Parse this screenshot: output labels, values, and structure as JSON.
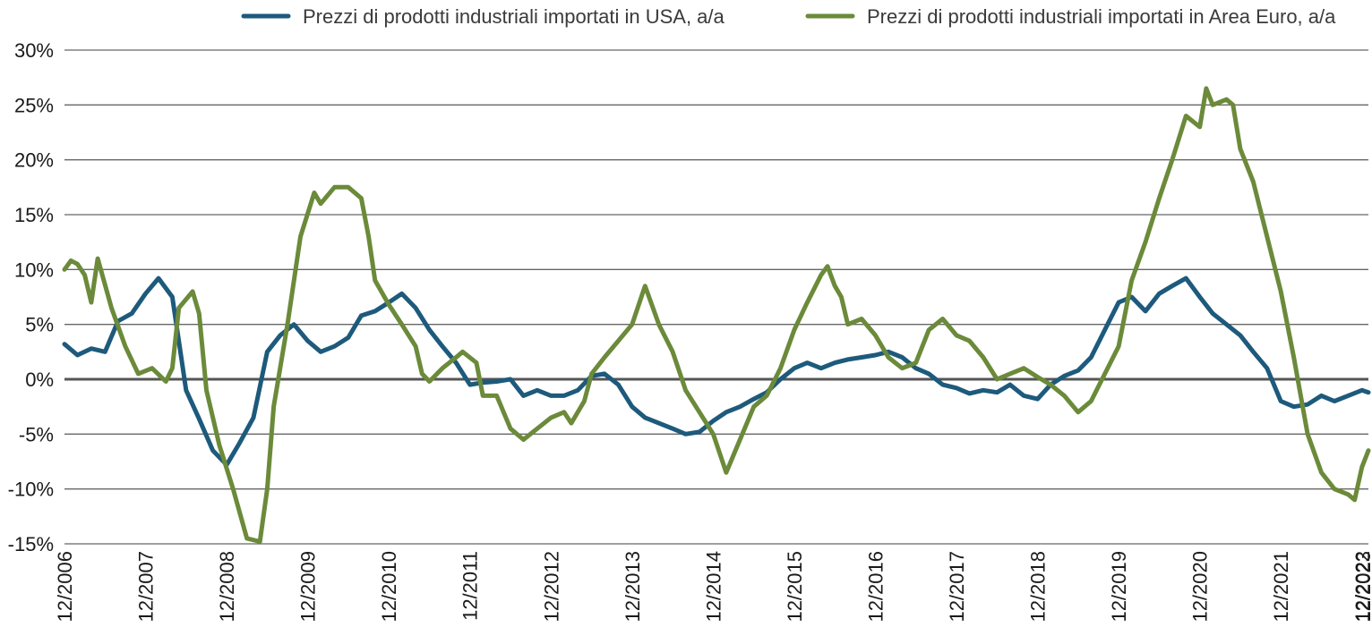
{
  "chart_data": {
    "type": "line",
    "title": "",
    "xlabel": "",
    "ylabel": "",
    "x_tick_labels": [
      "12/2006",
      "12/2007",
      "12/2008",
      "12/2009",
      "12/2010",
      "12/2011",
      "12/2012",
      "12/2013",
      "12/2014",
      "12/2015",
      "12/2016",
      "12/2017",
      "12/2018",
      "12/2019",
      "12/2020",
      "12/2021",
      "12/2022",
      "12/2023"
    ],
    "y_ticks": [
      30,
      25,
      20,
      15,
      10,
      5,
      0,
      -5,
      -10,
      -15
    ],
    "y_tick_labels": [
      "30%",
      "25%",
      "20%",
      "15%",
      "10%",
      "5%",
      "0%",
      "-5%",
      "-10%",
      "-15%"
    ],
    "ylim": [
      -15,
      30
    ],
    "xlim": [
      "12/2006",
      "12/2023"
    ],
    "grid": "horizontal",
    "legend_position": "top",
    "x_unit": "year",
    "series": [
      {
        "name": "Prezzi di prodotti industriali importati in USA, a/a",
        "color": "#1d5a7c",
        "points": [
          [
            2006.92,
            3.2
          ],
          [
            2007.08,
            2.2
          ],
          [
            2007.25,
            2.8
          ],
          [
            2007.42,
            2.5
          ],
          [
            2007.58,
            5.3
          ],
          [
            2007.75,
            6.0
          ],
          [
            2007.92,
            7.8
          ],
          [
            2008.08,
            9.2
          ],
          [
            2008.25,
            7.5
          ],
          [
            2008.42,
            -1.0
          ],
          [
            2008.58,
            -3.6
          ],
          [
            2008.75,
            -6.5
          ],
          [
            2008.92,
            -7.8
          ],
          [
            2009.08,
            -5.8
          ],
          [
            2009.25,
            -3.5
          ],
          [
            2009.42,
            2.5
          ],
          [
            2009.58,
            4.0
          ],
          [
            2009.75,
            5.0
          ],
          [
            2009.92,
            3.5
          ],
          [
            2010.08,
            2.5
          ],
          [
            2010.25,
            3.0
          ],
          [
            2010.42,
            3.8
          ],
          [
            2010.58,
            5.8
          ],
          [
            2010.75,
            6.2
          ],
          [
            2010.92,
            7.0
          ],
          [
            2011.08,
            7.8
          ],
          [
            2011.25,
            6.5
          ],
          [
            2011.42,
            4.5
          ],
          [
            2011.58,
            3.0
          ],
          [
            2011.75,
            1.5
          ],
          [
            2011.92,
            -0.5
          ],
          [
            2012.08,
            -0.3
          ],
          [
            2012.25,
            -0.2
          ],
          [
            2012.42,
            0.0
          ],
          [
            2012.58,
            -1.5
          ],
          [
            2012.75,
            -1.0
          ],
          [
            2012.92,
            -1.5
          ],
          [
            2013.08,
            -1.5
          ],
          [
            2013.25,
            -1.0
          ],
          [
            2013.42,
            0.3
          ],
          [
            2013.58,
            0.5
          ],
          [
            2013.75,
            -0.5
          ],
          [
            2013.92,
            -2.5
          ],
          [
            2014.08,
            -3.5
          ],
          [
            2014.25,
            -4.0
          ],
          [
            2014.42,
            -4.5
          ],
          [
            2014.58,
            -5.0
          ],
          [
            2014.75,
            -4.8
          ],
          [
            2014.92,
            -3.8
          ],
          [
            2015.08,
            -3.0
          ],
          [
            2015.25,
            -2.5
          ],
          [
            2015.42,
            -1.8
          ],
          [
            2015.58,
            -1.2
          ],
          [
            2015.75,
            0.0
          ],
          [
            2015.92,
            1.0
          ],
          [
            2016.08,
            1.5
          ],
          [
            2016.25,
            1.0
          ],
          [
            2016.42,
            1.5
          ],
          [
            2016.58,
            1.8
          ],
          [
            2016.75,
            2.0
          ],
          [
            2016.92,
            2.2
          ],
          [
            2017.08,
            2.5
          ],
          [
            2017.25,
            2.0
          ],
          [
            2017.42,
            1.0
          ],
          [
            2017.58,
            0.5
          ],
          [
            2017.75,
            -0.5
          ],
          [
            2017.92,
            -0.8
          ],
          [
            2018.08,
            -1.3
          ],
          [
            2018.25,
            -1.0
          ],
          [
            2018.42,
            -1.2
          ],
          [
            2018.58,
            -0.5
          ],
          [
            2018.75,
            -1.5
          ],
          [
            2018.92,
            -1.8
          ],
          [
            2019.08,
            -0.5
          ],
          [
            2019.25,
            0.3
          ],
          [
            2019.42,
            0.8
          ],
          [
            2019.58,
            2.0
          ],
          [
            2019.75,
            4.5
          ],
          [
            2019.92,
            7.0
          ],
          [
            2020.08,
            7.5
          ],
          [
            2020.25,
            6.2
          ],
          [
            2020.42,
            7.8
          ],
          [
            2020.58,
            8.5
          ],
          [
            2020.75,
            9.2
          ],
          [
            2020.92,
            7.5
          ],
          [
            2021.08,
            6.0
          ],
          [
            2021.25,
            5.0
          ],
          [
            2021.42,
            4.0
          ],
          [
            2021.58,
            2.5
          ],
          [
            2021.75,
            1.0
          ],
          [
            2021.92,
            -2.0
          ],
          [
            2022.08,
            -2.5
          ],
          [
            2022.25,
            -2.3
          ],
          [
            2022.42,
            -1.5
          ],
          [
            2022.58,
            -2.0
          ],
          [
            2022.75,
            -1.5
          ],
          [
            2022.92,
            -1.0
          ],
          [
            2023.0,
            -1.2
          ]
        ]
      },
      {
        "name": "Prezzi di prodotti industriali importati in Area Euro, a/a",
        "color": "#6b8a3a",
        "points": [
          [
            2006.92,
            10.0
          ],
          [
            2007.0,
            10.8
          ],
          [
            2007.08,
            10.5
          ],
          [
            2007.17,
            9.5
          ],
          [
            2007.25,
            7.0
          ],
          [
            2007.33,
            11.0
          ],
          [
            2007.5,
            6.5
          ],
          [
            2007.67,
            3.0
          ],
          [
            2007.83,
            0.5
          ],
          [
            2008.0,
            1.0
          ],
          [
            2008.17,
            -0.2
          ],
          [
            2008.25,
            1.0
          ],
          [
            2008.33,
            6.5
          ],
          [
            2008.5,
            8.0
          ],
          [
            2008.58,
            6.0
          ],
          [
            2008.67,
            -1.0
          ],
          [
            2008.83,
            -6.0
          ],
          [
            2009.0,
            -10.0
          ],
          [
            2009.17,
            -14.5
          ],
          [
            2009.33,
            -14.8
          ],
          [
            2009.42,
            -10.0
          ],
          [
            2009.5,
            -2.5
          ],
          [
            2009.67,
            5.0
          ],
          [
            2009.83,
            13.0
          ],
          [
            2010.0,
            17.0
          ],
          [
            2010.08,
            16.0
          ],
          [
            2010.25,
            17.5
          ],
          [
            2010.42,
            17.5
          ],
          [
            2010.58,
            16.5
          ],
          [
            2010.67,
            13.0
          ],
          [
            2010.75,
            9.0
          ],
          [
            2010.92,
            6.8
          ],
          [
            2011.08,
            5.0
          ],
          [
            2011.25,
            3.0
          ],
          [
            2011.33,
            0.5
          ],
          [
            2011.42,
            -0.2
          ],
          [
            2011.58,
            1.0
          ],
          [
            2011.75,
            2.0
          ],
          [
            2011.83,
            2.5
          ],
          [
            2012.0,
            1.5
          ],
          [
            2012.08,
            -1.5
          ],
          [
            2012.25,
            -1.5
          ],
          [
            2012.42,
            -4.5
          ],
          [
            2012.58,
            -5.5
          ],
          [
            2012.75,
            -4.5
          ],
          [
            2012.92,
            -3.5
          ],
          [
            2013.08,
            -3.0
          ],
          [
            2013.17,
            -4.0
          ],
          [
            2013.33,
            -2.0
          ],
          [
            2013.42,
            0.5
          ],
          [
            2013.58,
            2.0
          ],
          [
            2013.75,
            3.5
          ],
          [
            2013.92,
            5.0
          ],
          [
            2014.08,
            8.5
          ],
          [
            2014.25,
            5.0
          ],
          [
            2014.42,
            2.5
          ],
          [
            2014.58,
            -1.0
          ],
          [
            2014.75,
            -3.0
          ],
          [
            2014.92,
            -5.0
          ],
          [
            2015.08,
            -8.5
          ],
          [
            2015.25,
            -5.5
          ],
          [
            2015.42,
            -2.5
          ],
          [
            2015.58,
            -1.5
          ],
          [
            2015.75,
            1.0
          ],
          [
            2015.92,
            4.5
          ],
          [
            2016.08,
            7.0
          ],
          [
            2016.25,
            9.5
          ],
          [
            2016.33,
            10.3
          ],
          [
            2016.42,
            8.5
          ],
          [
            2016.5,
            7.5
          ],
          [
            2016.58,
            5.0
          ],
          [
            2016.75,
            5.5
          ],
          [
            2016.92,
            4.0
          ],
          [
            2017.08,
            2.0
          ],
          [
            2017.25,
            1.0
          ],
          [
            2017.42,
            1.5
          ],
          [
            2017.58,
            4.5
          ],
          [
            2017.75,
            5.5
          ],
          [
            2017.92,
            4.0
          ],
          [
            2018.08,
            3.5
          ],
          [
            2018.25,
            2.0
          ],
          [
            2018.42,
            0.0
          ],
          [
            2018.58,
            0.5
          ],
          [
            2018.75,
            1.0
          ],
          [
            2018.92,
            0.2
          ],
          [
            2019.08,
            -0.5
          ],
          [
            2019.25,
            -1.5
          ],
          [
            2019.42,
            -3.0
          ],
          [
            2019.58,
            -2.0
          ],
          [
            2019.75,
            0.5
          ],
          [
            2019.92,
            3.0
          ],
          [
            2020.08,
            9.0
          ],
          [
            2020.25,
            12.5
          ],
          [
            2020.42,
            16.5
          ],
          [
            2020.58,
            20.0
          ],
          [
            2020.75,
            24.0
          ],
          [
            2020.92,
            23.0
          ],
          [
            2021.0,
            26.5
          ],
          [
            2021.08,
            25.0
          ],
          [
            2021.25,
            25.5
          ],
          [
            2021.33,
            25.0
          ],
          [
            2021.42,
            21.0
          ],
          [
            2021.58,
            18.0
          ],
          [
            2021.75,
            13.0
          ],
          [
            2021.92,
            8.0
          ],
          [
            2022.08,
            2.0
          ],
          [
            2022.25,
            -5.0
          ],
          [
            2022.42,
            -8.5
          ],
          [
            2022.58,
            -10.0
          ],
          [
            2022.75,
            -10.5
          ],
          [
            2022.83,
            -11.0
          ],
          [
            2022.92,
            -8.0
          ],
          [
            2023.0,
            -6.5
          ]
        ]
      }
    ]
  }
}
